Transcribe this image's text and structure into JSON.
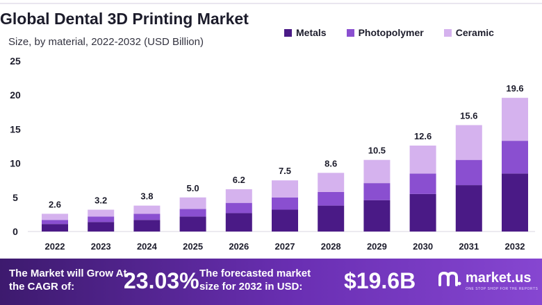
{
  "header": {
    "title": "Global Dental 3D Printing Market",
    "subtitle": "Size, by material, 2022-2032 (USD Billion)"
  },
  "colors": {
    "metals": "#4a1a86",
    "photopolymer": "#8a4fd0",
    "ceramic": "#d5b2ee",
    "banner_start": "#3d1a6e",
    "banner_end": "#8646d1"
  },
  "chart_data": {
    "type": "bar",
    "stacked": true,
    "categories": [
      "2022",
      "2023",
      "2024",
      "2025",
      "2026",
      "2027",
      "2028",
      "2029",
      "2030",
      "2031",
      "2032"
    ],
    "series": [
      {
        "name": "Metals",
        "values": [
          1.1,
          1.4,
          1.7,
          2.2,
          2.7,
          3.2,
          3.8,
          4.6,
          5.5,
          6.8,
          8.5
        ]
      },
      {
        "name": "Photopolymer",
        "values": [
          0.6,
          0.8,
          0.9,
          1.1,
          1.5,
          1.8,
          2.0,
          2.5,
          3.0,
          3.7,
          4.8
        ]
      },
      {
        "name": "Ceramic",
        "values": [
          0.9,
          1.0,
          1.2,
          1.7,
          2.0,
          2.5,
          2.8,
          3.4,
          4.1,
          5.1,
          6.3
        ]
      }
    ],
    "totals": [
      2.6,
      3.2,
      3.8,
      5.0,
      6.2,
      7.5,
      8.6,
      10.5,
      12.6,
      15.6,
      19.6
    ],
    "total_labels": [
      "2.6",
      "3.2",
      "3.8",
      "5.0",
      "6.2",
      "7.5",
      "8.6",
      "10.5",
      "12.6",
      "15.6",
      "19.6"
    ],
    "ylim": [
      0,
      25
    ],
    "yticks": [
      0,
      5,
      10,
      15,
      20,
      25
    ],
    "grid": false,
    "legend_position": "top-right"
  },
  "legend": [
    {
      "label": "Metals",
      "color": "#4a1a86"
    },
    {
      "label": "Photopolymer",
      "color": "#8a4fd0"
    },
    {
      "label": "Ceramic",
      "color": "#d5b2ee"
    }
  ],
  "banner": {
    "cagr_text": "The Market will Grow At the CAGR of:",
    "cagr_value": "23.03%",
    "forecast_text": "The forecasted market size for 2032 in USD:",
    "forecast_value": "$19.6B",
    "brand": "market.us",
    "tagline": "ONE STOP SHOP FOR THE REPORTS"
  }
}
